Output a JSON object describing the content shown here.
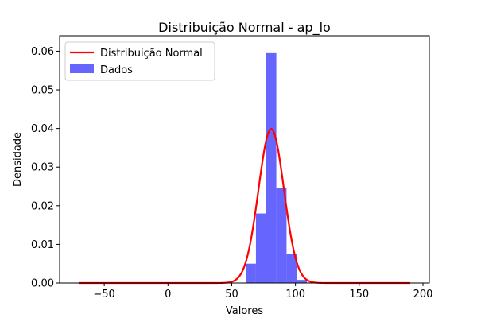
{
  "chart_data": {
    "type": "bar",
    "title": "Distribuição Normal - ap_lo",
    "xlabel": "Valores",
    "ylabel": "Densidade",
    "xlim": [
      -85,
      205
    ],
    "ylim": [
      0,
      0.064
    ],
    "xticks": [
      -50,
      0,
      50,
      100,
      150,
      200
    ],
    "yticks": [
      0.0,
      0.01,
      0.02,
      0.03,
      0.04,
      0.05,
      0.06
    ],
    "ytick_labels": [
      "0.00",
      "0.01",
      "0.02",
      "0.03",
      "0.04",
      "0.05",
      "0.06"
    ],
    "legend_position": "upper left",
    "histogram": {
      "name": "Dados",
      "color": "#6666ff",
      "bin_edges": [
        61,
        69,
        77,
        85,
        93,
        101,
        109
      ],
      "values": [
        0.005,
        0.018,
        0.0595,
        0.0245,
        0.0075,
        0.0008
      ]
    },
    "normal_curve": {
      "name": "Distribuição Normal",
      "color": "#ff0000",
      "mean": 81,
      "std": 10,
      "x_range": [
        -70,
        190
      ]
    }
  }
}
